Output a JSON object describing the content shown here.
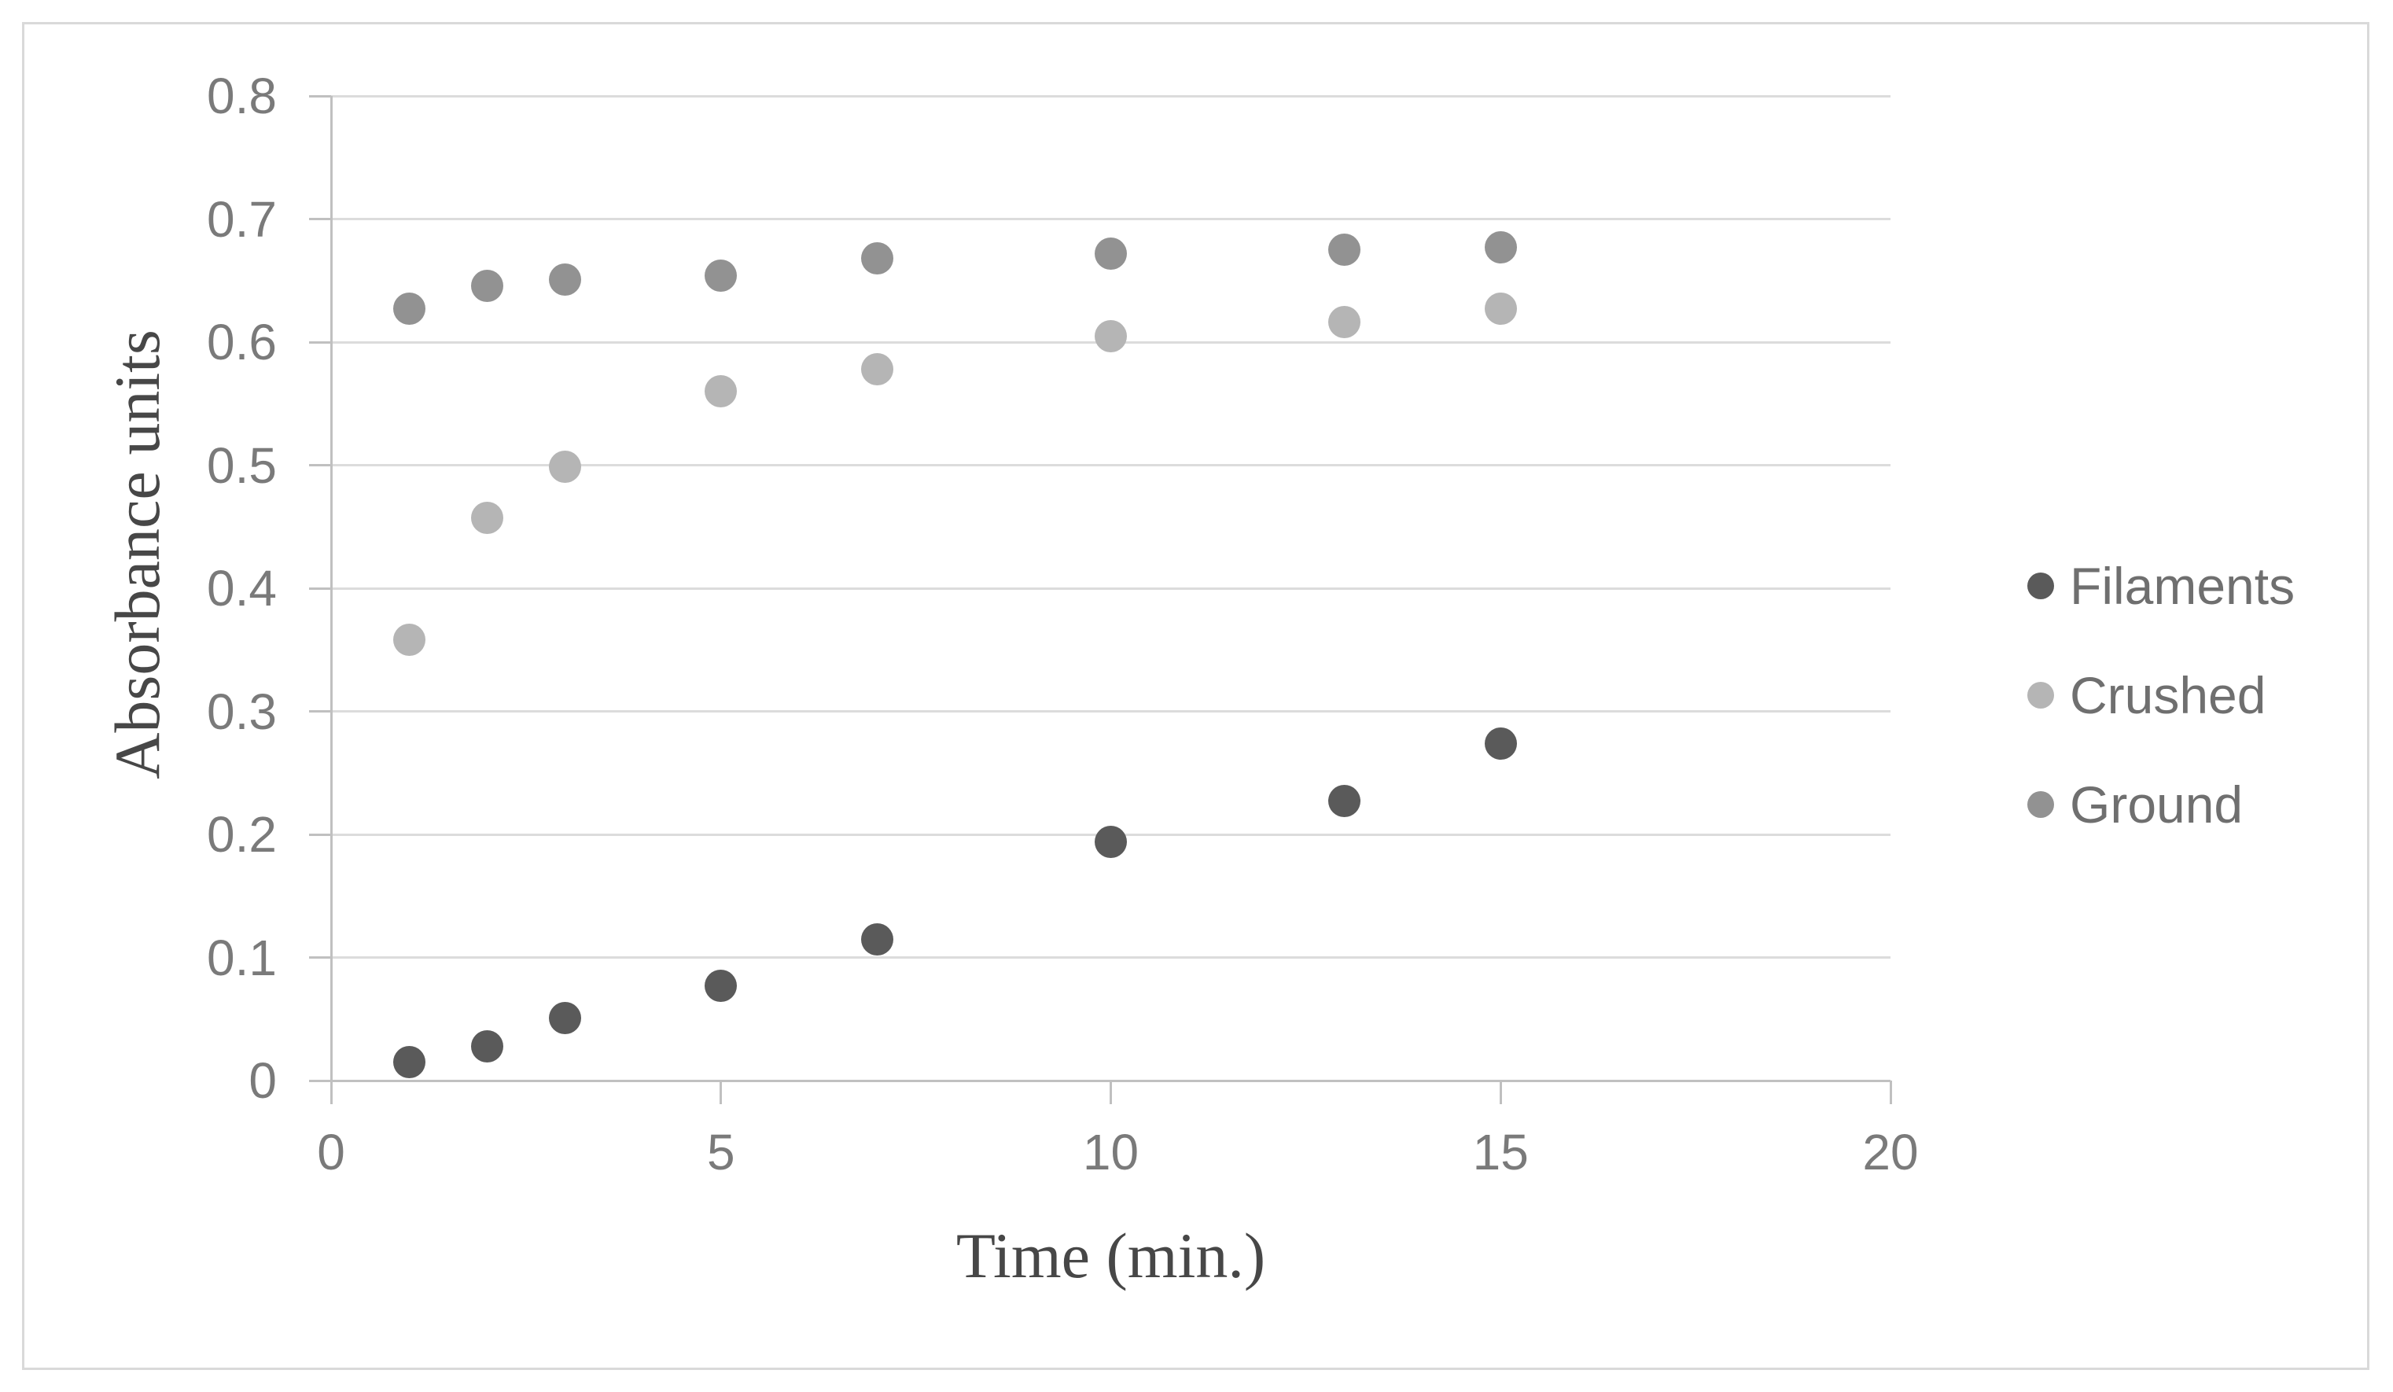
{
  "chart_data": {
    "type": "scatter",
    "title": "",
    "xlabel": "Time (min.)",
    "ylabel": "Absorbance units",
    "x": [
      1,
      2,
      3,
      5,
      7,
      10,
      13,
      15
    ],
    "series": [
      {
        "name": "Filaments",
        "color": "#5a5a5a",
        "values": [
          0.015,
          0.028,
          0.051,
          0.077,
          0.115,
          0.194,
          0.227,
          0.274
        ]
      },
      {
        "name": "Crushed",
        "color": "#b5b5b5",
        "values": [
          0.358,
          0.457,
          0.499,
          0.56,
          0.578,
          0.605,
          0.616,
          0.627
        ]
      },
      {
        "name": "Ground",
        "color": "#929292",
        "values": [
          0.627,
          0.646,
          0.651,
          0.654,
          0.668,
          0.672,
          0.675,
          0.677
        ]
      }
    ],
    "xlim": [
      0,
      20
    ],
    "ylim": [
      0,
      0.8
    ],
    "x_ticks": [
      0,
      5,
      10,
      15,
      20
    ],
    "x_tick_labels": [
      "0",
      "5",
      "10",
      "15",
      "20"
    ],
    "y_ticks": [
      0,
      0.1,
      0.2,
      0.3,
      0.4,
      0.5,
      0.6,
      0.7,
      0.8
    ],
    "y_tick_labels": [
      "0",
      "0.1",
      "0.2",
      "0.3",
      "0.4",
      "0.5",
      "0.6",
      "0.7",
      "0.8"
    ],
    "grid": "horizontal-only",
    "legend_position": "right-middle",
    "marker_shape": "circle"
  },
  "legend": {
    "items": [
      {
        "label": "Filaments",
        "color": "#5a5a5a"
      },
      {
        "label": "Crushed",
        "color": "#b5b5b5"
      },
      {
        "label": "Ground",
        "color": "#929292"
      }
    ]
  },
  "colors": {
    "background": "#ffffff",
    "chart_border": "#d9d9d9",
    "gridline": "#dcdcdc",
    "axis_line": "#c0c0c0",
    "tick_label": "#7a7a7a",
    "axis_title": "#474747",
    "legend_text": "#6f6f6f"
  }
}
